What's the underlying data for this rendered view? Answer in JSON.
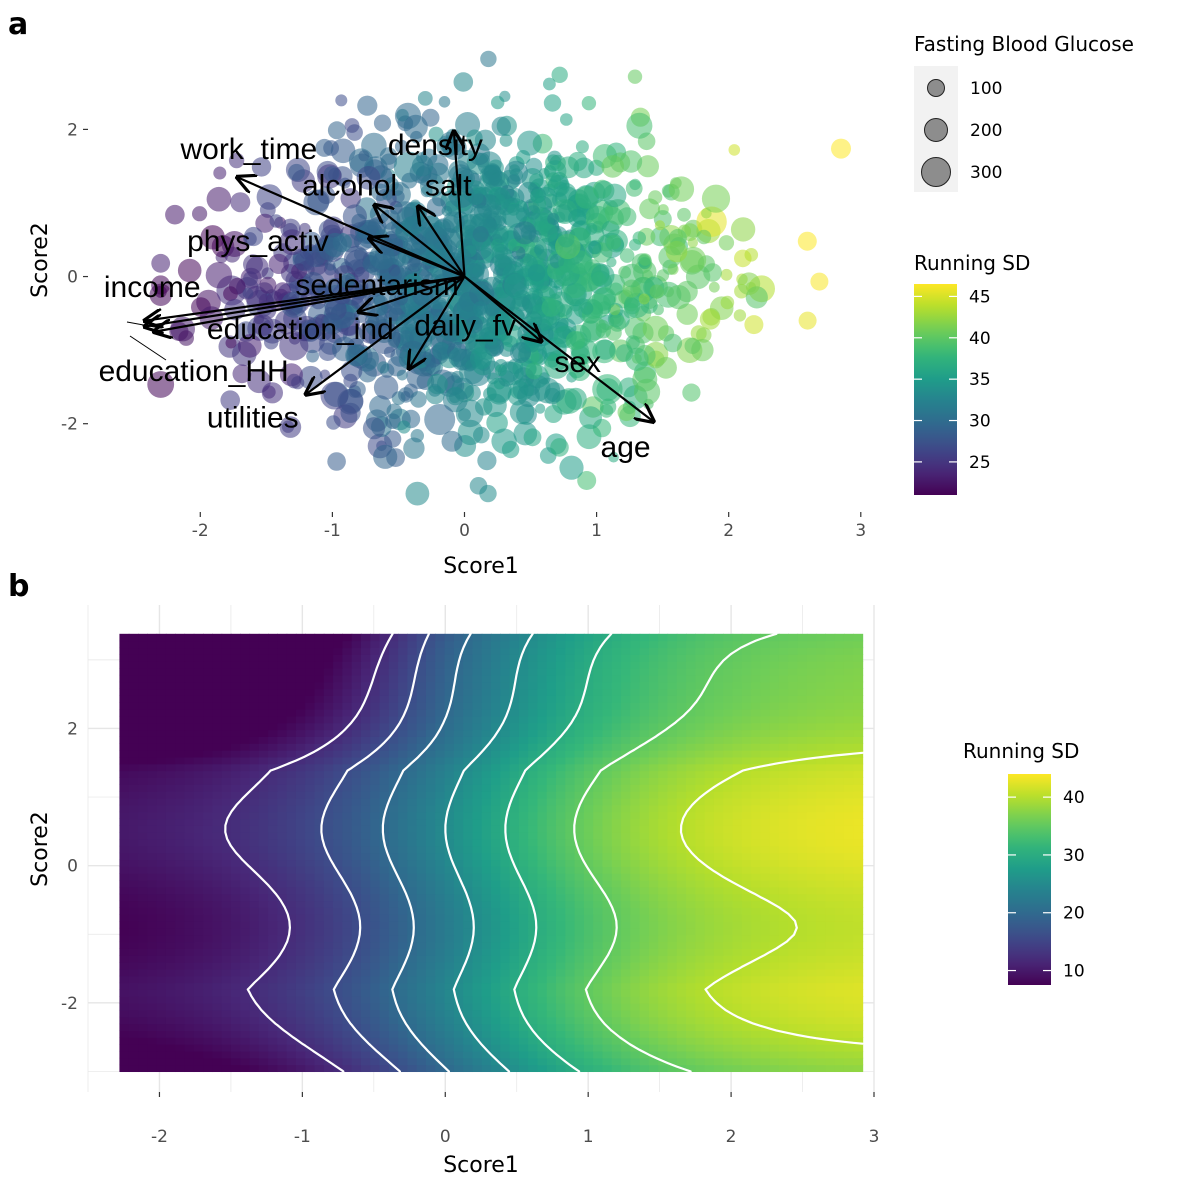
{
  "figure": {
    "panel_a_letter": "a",
    "panel_b_letter": "b"
  },
  "colors": {
    "panel_background": "#ebebeb",
    "grid": "#ffffff",
    "viridis": [
      "#440154",
      "#482878",
      "#3e4a89",
      "#31688e",
      "#26828e",
      "#1f9e89",
      "#35b779",
      "#6dcd59",
      "#b4de2c",
      "#fde725"
    ],
    "contour": "#ffffff",
    "arrow": "#000000"
  },
  "chart_data": [
    {
      "type": "scatter",
      "panel": "a",
      "xlabel": "Score1",
      "ylabel": "Score2",
      "xlim": [
        -2.85,
        3.1
      ],
      "ylim": [
        -3.2,
        3.65
      ],
      "x_ticks": [
        -2,
        -1,
        0,
        1,
        2,
        3
      ],
      "y_ticks": [
        -2,
        0,
        2
      ],
      "grid": true,
      "size_legend": {
        "title": "Fasting Blood Glucose",
        "placement": "right",
        "entries": [
          {
            "label": "100",
            "value": 100
          },
          {
            "label": "200",
            "value": 200
          },
          {
            "label": "300",
            "value": 300
          }
        ]
      },
      "color_legend": {
        "title": "Running SD",
        "placement": "right",
        "range": [
          21,
          46.5
        ],
        "ticks": [
          25,
          30,
          35,
          40,
          45
        ],
        "tick_labels": [
          "25",
          "30",
          "35",
          "40",
          "45"
        ],
        "colormap": "viridis"
      },
      "points_note_value_ranges": {
        "x": [
          -2.3,
          2.85
        ],
        "y": [
          -2.95,
          3.25
        ]
      },
      "loadings": [
        {
          "name": "work_time",
          "x": -1.72,
          "y": 1.35
        },
        {
          "name": "density",
          "x": -0.08,
          "y": 1.97
        },
        {
          "name": "alcohol",
          "x": -0.68,
          "y": 0.97
        },
        {
          "name": "salt",
          "x": -0.35,
          "y": 0.95
        },
        {
          "name": "phys_activ",
          "x": -0.72,
          "y": 0.52
        },
        {
          "name": "sedentarism",
          "x": -0.8,
          "y": -0.48
        },
        {
          "name": "income",
          "x": -2.42,
          "y": -0.6
        },
        {
          "name": "education_ind",
          "x": -2.35,
          "y": -0.75
        },
        {
          "name": "education_HH",
          "x": -2.42,
          "y": -0.68
        },
        {
          "name": "utilities",
          "x": -1.2,
          "y": -1.6
        },
        {
          "name": "daily_fv",
          "x": -0.42,
          "y": -1.25
        },
        {
          "name": "sex",
          "x": 0.58,
          "y": -0.88
        },
        {
          "name": "age",
          "x": 1.43,
          "y": -1.97
        }
      ],
      "loading_label_positions": [
        {
          "name": "work_time",
          "x": -2.15,
          "y": 1.6
        },
        {
          "name": "density",
          "x": -0.58,
          "y": 1.65
        },
        {
          "name": "alcohol",
          "x": -1.23,
          "y": 1.1
        },
        {
          "name": "salt",
          "x": -0.3,
          "y": 1.1
        },
        {
          "name": "phys_activ",
          "x": -2.1,
          "y": 0.35
        },
        {
          "name": "sedentarism",
          "x": -1.28,
          "y": -0.25
        },
        {
          "name": "income",
          "x": -2.73,
          "y": -0.28
        },
        {
          "name": "education_ind",
          "x": -1.95,
          "y": -0.85
        },
        {
          "name": "daily_fv",
          "x": -0.38,
          "y": -0.8
        },
        {
          "name": "education_HH",
          "x": -2.77,
          "y": -1.42
        },
        {
          "name": "sex",
          "x": 0.68,
          "y": -1.3
        },
        {
          "name": "utilities",
          "x": -1.95,
          "y": -2.05
        },
        {
          "name": "age",
          "x": 1.03,
          "y": -2.45
        }
      ]
    },
    {
      "type": "heatmap",
      "panel": "b",
      "xlabel": "Score1",
      "ylabel": "Score2",
      "xlim": [
        -2.5,
        3.0
      ],
      "ylim": [
        -3.3,
        3.8
      ],
      "x_ticks": [
        -2,
        -1,
        0,
        1,
        2,
        3
      ],
      "y_ticks": [
        -2,
        0,
        2
      ],
      "grid": true,
      "x_range_data": [
        -2.28,
        2.92
      ],
      "y_range_data": [
        -3.0,
        3.38
      ],
      "color_legend": {
        "title": "Running SD",
        "placement": "right",
        "range": [
          7.5,
          44
        ],
        "ticks": [
          10,
          20,
          30,
          40
        ],
        "tick_labels": [
          "10",
          "20",
          "30",
          "40"
        ],
        "colormap": "viridis"
      },
      "contour_levels": [
        12,
        16,
        20,
        25,
        30,
        35,
        40
      ]
    }
  ]
}
